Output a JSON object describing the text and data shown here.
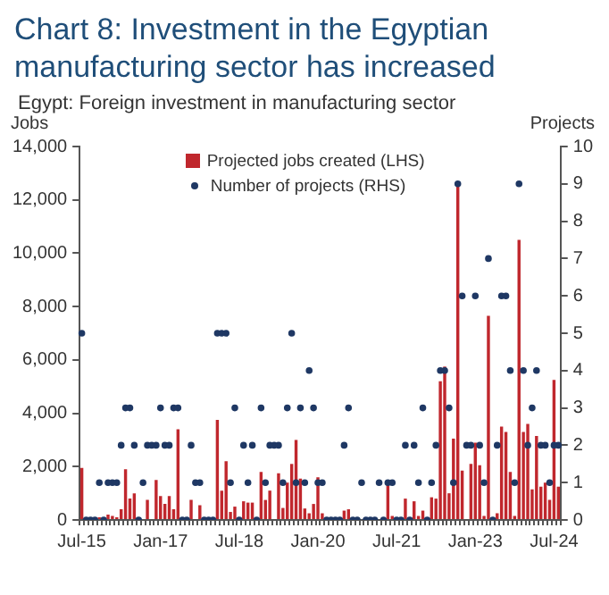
{
  "chart_data": {
    "type": "bar",
    "title": "Chart 8: Investment in the Egyptian manufacturing sector has increased",
    "subtitle": "Egypt: Foreign investment in manufacturing sector",
    "ylabel": "Jobs",
    "y2label": "Projects",
    "categories": [
      "Jul-15",
      null,
      null,
      null,
      null,
      null,
      null,
      null,
      null,
      null,
      null,
      null,
      null,
      null,
      null,
      null,
      null,
      null,
      "Jan-17",
      null,
      null,
      null,
      null,
      null,
      null,
      null,
      null,
      null,
      null,
      null,
      null,
      null,
      null,
      null,
      null,
      null,
      "Jul-18",
      null,
      null,
      null,
      null,
      null,
      null,
      null,
      null,
      null,
      null,
      null,
      null,
      null,
      null,
      null,
      null,
      null,
      "Jan-20",
      null,
      null,
      null,
      null,
      null,
      null,
      null,
      null,
      null,
      null,
      null,
      null,
      null,
      null,
      null,
      null,
      null,
      "Jul-21",
      null,
      null,
      null,
      null,
      null,
      null,
      null,
      null,
      null,
      null,
      null,
      null,
      null,
      null,
      null,
      null,
      null,
      "Jan-23",
      null,
      null,
      null,
      null,
      null,
      null,
      null,
      null,
      null,
      null,
      null,
      null,
      null,
      null,
      null,
      null,
      null,
      "Jul-24",
      null
    ],
    "series": [
      {
        "name": "Projected jobs created (LHS)",
        "color": "#c0272d",
        "values": [
          1950,
          0,
          0,
          0,
          100,
          100,
          200,
          150,
          100,
          400,
          1900,
          800,
          1000,
          0,
          0,
          750,
          0,
          1500,
          900,
          600,
          900,
          400,
          3400,
          0,
          0,
          750,
          0,
          550,
          0,
          0,
          0,
          3750,
          1100,
          2200,
          300,
          500,
          0,
          700,
          650,
          650,
          0,
          1800,
          750,
          1100,
          0,
          1750,
          450,
          1400,
          2100,
          3000,
          1550,
          430,
          250,
          600,
          1600,
          250,
          100,
          0,
          0,
          0,
          350,
          400,
          0,
          0,
          0,
          0,
          0,
          0,
          0,
          0,
          1350,
          150,
          0,
          0,
          800,
          0,
          700,
          150,
          350,
          0,
          850,
          800,
          5200,
          5750,
          1000,
          3050,
          12650,
          1850,
          0,
          2100,
          2900,
          2050,
          150,
          7650,
          0,
          250,
          3500,
          3300,
          1800,
          150,
          10500,
          3300,
          3600,
          1150,
          3150,
          1250,
          1400,
          750,
          5250,
          1250
        ]
      },
      {
        "name": "Number of projects (RHS)",
        "type": "scatter",
        "axis": "y2",
        "color": "#1f3864",
        "values": [
          5,
          0,
          0,
          0,
          1,
          0,
          1,
          1,
          1,
          2,
          3,
          3,
          2,
          0,
          1,
          2,
          2,
          2,
          3,
          2,
          2,
          3,
          3,
          0,
          0,
          2,
          1,
          1,
          0,
          0,
          0,
          5,
          5,
          5,
          1,
          3,
          0,
          2,
          1,
          2,
          0,
          3,
          1,
          2,
          2,
          2,
          1,
          3,
          5,
          1,
          3,
          1,
          4,
          3,
          1,
          1,
          0,
          0,
          0,
          0,
          2,
          3,
          0,
          0,
          1,
          0,
          0,
          0,
          1,
          0,
          1,
          1,
          0,
          0,
          2,
          0,
          2,
          1,
          3,
          0,
          1,
          2,
          4,
          4,
          3,
          1,
          9,
          6,
          2,
          2,
          6,
          2,
          1,
          7,
          0,
          2,
          6,
          6,
          4,
          1,
          9,
          4,
          2,
          3,
          4,
          2,
          2,
          1,
          2,
          2
        ]
      }
    ],
    "ylim": [
      0,
      14000
    ],
    "yticks": [
      0,
      {
        "value": 2000,
        "label": "2,000"
      },
      {
        "value": 4000,
        "label": "4,000"
      },
      {
        "value": 6000,
        "label": "6,000"
      },
      {
        "value": 8000,
        "label": "8,000"
      },
      {
        "value": 10000,
        "label": "10,000"
      },
      {
        "value": 12000,
        "label": "12,000"
      },
      {
        "value": 14000,
        "label": "14,000"
      }
    ],
    "y2lim": [
      0,
      10
    ],
    "y2ticks": [
      0,
      1,
      2,
      3,
      4,
      5,
      6,
      7,
      8,
      9,
      10
    ],
    "grid": false,
    "legend": "top",
    "marker": "circle"
  }
}
